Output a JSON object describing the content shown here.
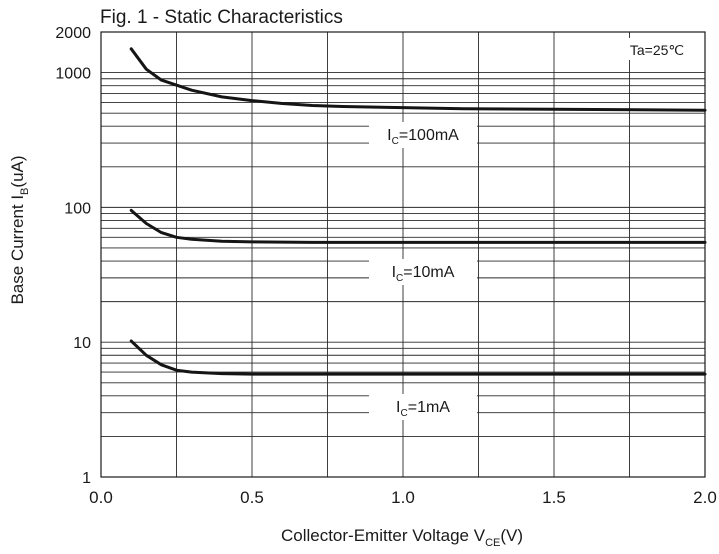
{
  "chart_data": {
    "type": "line",
    "title": "Fig. 1 - Static Characteristics",
    "annotation": "Ta=25℃",
    "xlabel": {
      "main": "Collector-Emitter Voltage V",
      "sub": "CE",
      "tail": "(V)"
    },
    "ylabel": {
      "main": "Base Current I",
      "sub": "B",
      "tail": "(uA)"
    },
    "xlim": [
      0.0,
      2.0
    ],
    "ylim": [
      1,
      2000
    ],
    "yscale": "log",
    "grid": true,
    "x_ticks": [
      "0.0",
      "0.5",
      "1.0",
      "1.5",
      "2.0"
    ],
    "y_ticks": [
      "1",
      "10",
      "100",
      "1000",
      "2000"
    ],
    "series": [
      {
        "label": {
          "main": "I",
          "sub": "C",
          "tail": "=100mA"
        },
        "x": [
          0.1,
          0.15,
          0.2,
          0.3,
          0.4,
          0.5,
          0.6,
          0.7,
          0.8,
          1.0,
          1.2,
          1.5,
          2.0
        ],
        "y": [
          1500,
          1060,
          880,
          740,
          660,
          620,
          590,
          570,
          560,
          550,
          540,
          535,
          525
        ]
      },
      {
        "label": {
          "main": "I",
          "sub": "C",
          "tail": "=10mA"
        },
        "x": [
          0.1,
          0.15,
          0.2,
          0.25,
          0.3,
          0.4,
          0.5,
          0.7,
          1.0,
          1.5,
          2.0
        ],
        "y": [
          95,
          76,
          65,
          60,
          58,
          56,
          55.5,
          55,
          55,
          55,
          55
        ]
      },
      {
        "label": {
          "main": "I",
          "sub": "C",
          "tail": "=1mA"
        },
        "x": [
          0.1,
          0.15,
          0.2,
          0.25,
          0.3,
          0.4,
          0.5,
          0.7,
          1.0,
          1.5,
          2.0
        ],
        "y": [
          10.2,
          8.0,
          6.8,
          6.2,
          6.0,
          5.85,
          5.8,
          5.8,
          5.8,
          5.8,
          5.8
        ]
      }
    ]
  }
}
